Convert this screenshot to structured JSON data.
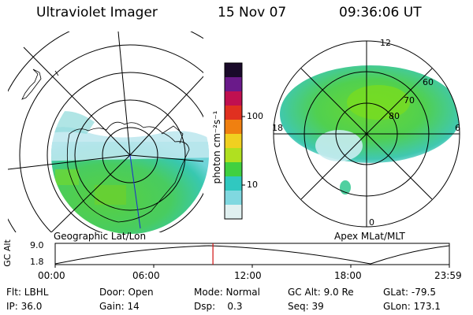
{
  "header": {
    "title": "Ultraviolet Imager",
    "date": "15 Nov 07",
    "time": "09:36:06 UT"
  },
  "left_panel": {
    "caption": "Geographic Lat/Lon"
  },
  "right_panel": {
    "caption": "Apex MLat/MLT",
    "mlt_labels": {
      "top": "12",
      "left": "18",
      "right": "6",
      "bottom": "0"
    },
    "lat_labels": [
      "60",
      "70",
      "80"
    ]
  },
  "colorbar": {
    "unit_label": "photon cm⁻²s⁻¹",
    "ticks": [
      "100",
      "10"
    ],
    "scale": "log",
    "colors": [
      "#1a0a2a",
      "#6a1a8a",
      "#c01050",
      "#e03020",
      "#f08010",
      "#f0d020",
      "#b0e020",
      "#40d040",
      "#30c8c0",
      "#80d8e0",
      "#e0f0f0"
    ]
  },
  "timeline": {
    "ylabel": "GC Alt",
    "y_ticks": [
      "9.0",
      "1.8"
    ],
    "x_ticks": [
      "00:00",
      "06:00",
      "12:00",
      "18:00",
      "23:59"
    ],
    "current_time_fraction": 0.4001,
    "marker_color": "#d01010"
  },
  "status": {
    "row1": [
      {
        "label": "Flt: LBHL"
      },
      {
        "label": "Door: Open"
      },
      {
        "label": "Mode: Normal"
      },
      {
        "label": "GC Alt: 9.0 Re"
      },
      {
        "label": "GLat: -79.5"
      }
    ],
    "row2": [
      {
        "label": "IP: 36.0"
      },
      {
        "label": "Gain: 14"
      },
      {
        "label": "Dsp:    0.3"
      },
      {
        "label": "Seq: 39"
      },
      {
        "label": "GLon: 173.1"
      }
    ]
  }
}
